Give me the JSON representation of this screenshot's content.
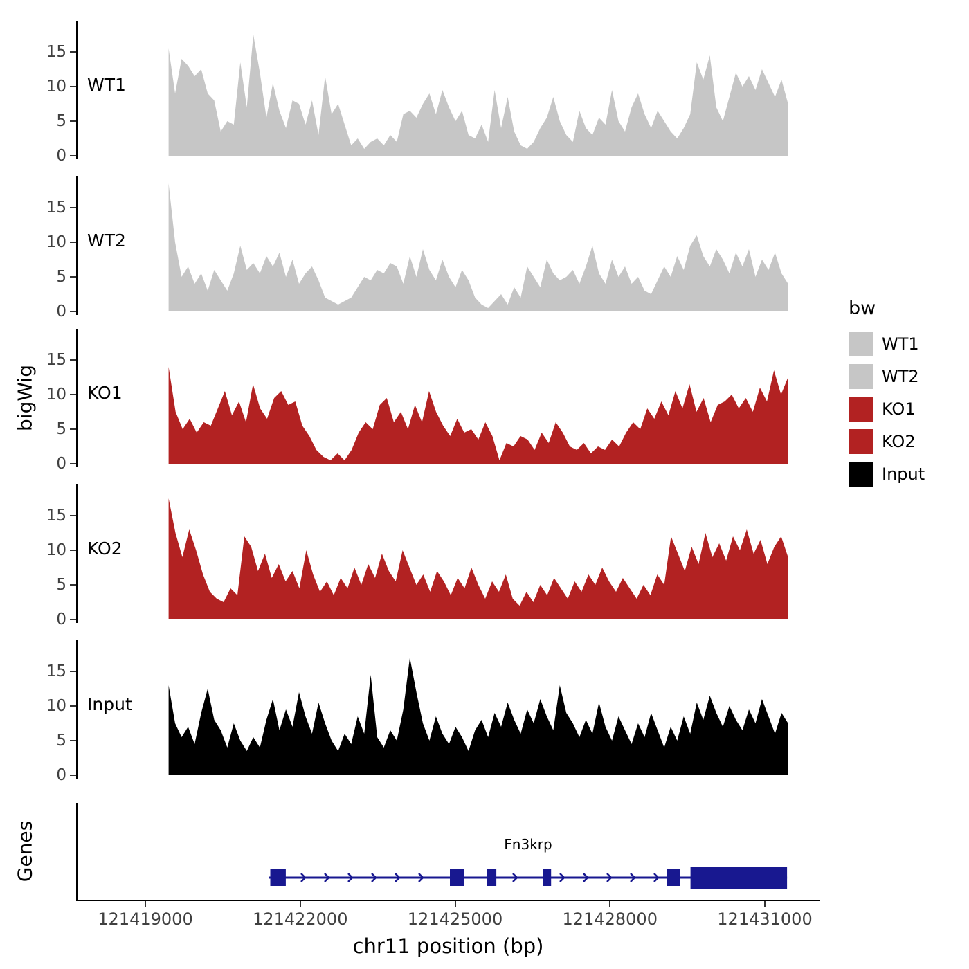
{
  "labels": {
    "y_axis": "bigWig",
    "genes_axis": "Genes",
    "x_axis": "chr11 position (bp)"
  },
  "axis": {
    "x_min": 121419000,
    "x_max": 121431000,
    "x_ticks": [
      121419000,
      121422000,
      121425000,
      121428000,
      121431000
    ],
    "x_tick_labels": [
      "121419000",
      "121422000",
      "121425000",
      "121428000",
      "121431000"
    ],
    "y_ticks": [
      0,
      5,
      10,
      15
    ]
  },
  "legend": {
    "title": "bw",
    "items": [
      {
        "label": "WT1",
        "color": "#c6c6c6"
      },
      {
        "label": "WT2",
        "color": "#c6c6c6"
      },
      {
        "label": "KO1",
        "color": "#b22222"
      },
      {
        "label": "KO2",
        "color": "#b22222"
      },
      {
        "label": "Input",
        "color": "#000000"
      }
    ]
  },
  "chart_data": {
    "type": "area",
    "title": "",
    "xlabel": "chr11 position (bp)",
    "ylabel": "bigWig",
    "x_start": 121419450,
    "x_end": 121431450,
    "ylim": [
      0,
      19
    ],
    "tracks": [
      {
        "name": "WT1",
        "color": "#c6c6c6",
        "values": [
          15.5,
          9,
          14,
          13,
          11.5,
          12.5,
          9,
          8,
          3.5,
          5,
          4.5,
          13.5,
          7,
          17.5,
          12,
          5.5,
          10.5,
          6.5,
          4,
          8,
          7.5,
          4.5,
          8,
          3,
          11.5,
          6,
          7.5,
          4.5,
          1.5,
          2.5,
          1,
          2,
          2.5,
          1.5,
          3,
          2,
          6,
          6.5,
          5.5,
          7.5,
          9,
          6,
          9.5,
          7,
          5,
          6.5,
          3,
          2.5,
          4.5,
          2,
          9.5,
          4,
          8.5,
          3.5,
          1.5,
          1,
          2,
          4,
          5.5,
          8.5,
          5,
          3,
          2,
          6.5,
          4,
          3,
          5.5,
          4.5,
          9.5,
          5,
          3.5,
          7,
          9,
          6,
          4,
          6.5,
          5,
          3.5,
          2.5,
          4,
          6,
          13.5,
          11,
          14.5,
          7,
          5,
          8.5,
          12,
          10,
          11.5,
          9.5,
          12.5,
          10.5,
          8.5,
          11,
          7.5
        ]
      },
      {
        "name": "WT2",
        "color": "#c6c6c6",
        "values": [
          18.5,
          10,
          5,
          6.5,
          4,
          5.5,
          3,
          6,
          4.5,
          3,
          5.5,
          9.5,
          6,
          7,
          5.5,
          8,
          6.5,
          8.5,
          5,
          7.5,
          4,
          5.5,
          6.5,
          4.5,
          2,
          1.5,
          1,
          1.5,
          2,
          3.5,
          5,
          4.5,
          6,
          5.5,
          7,
          6.5,
          4,
          8,
          5,
          9,
          6,
          4.5,
          7.5,
          5,
          3.5,
          6,
          4.5,
          2,
          1,
          0.5,
          1.5,
          2.5,
          1,
          3.5,
          2,
          6.5,
          5,
          3.5,
          7.5,
          5.5,
          4.5,
          5,
          6,
          4,
          6.5,
          9.5,
          5.5,
          4,
          7.5,
          5,
          6.5,
          4,
          5,
          3,
          2.5,
          4.5,
          6.5,
          5,
          8,
          6,
          9.5,
          11,
          8,
          6.5,
          9,
          7.5,
          5.5,
          8.5,
          6.5,
          9,
          5,
          7.5,
          6,
          8.5,
          5.5,
          4
        ]
      },
      {
        "name": "KO1",
        "color": "#b22222",
        "values": [
          14,
          7.5,
          5,
          6.5,
          4.5,
          6,
          5.5,
          8,
          10.5,
          7,
          9,
          6,
          11.5,
          8,
          6.5,
          9.5,
          10.5,
          8.5,
          9,
          5.5,
          4,
          2,
          1,
          0.5,
          1.5,
          0.5,
          2,
          4.5,
          6,
          5,
          8.5,
          9.5,
          6,
          7.5,
          5,
          8.5,
          6,
          10.5,
          7.5,
          5.5,
          4,
          6.5,
          4.5,
          5,
          3.5,
          6,
          4,
          0.5,
          3,
          2.5,
          4,
          3.5,
          2,
          4.5,
          3,
          6,
          4.5,
          2.5,
          2,
          3,
          1.5,
          2.5,
          2,
          3.5,
          2.5,
          4.5,
          6,
          5,
          8,
          6.5,
          9,
          7,
          10.5,
          8,
          11.5,
          7.5,
          9.5,
          6,
          8.5,
          9,
          10,
          8,
          9.5,
          7.5,
          11,
          9,
          13.5,
          10,
          12.5
        ]
      },
      {
        "name": "KO2",
        "color": "#b22222",
        "values": [
          17.5,
          12.5,
          9,
          13,
          10,
          6.5,
          4,
          3,
          2.5,
          4.5,
          3.5,
          12,
          10.5,
          7,
          9.5,
          6,
          8,
          5.5,
          7,
          4.5,
          10,
          6.5,
          4,
          5.5,
          3.5,
          6,
          4.5,
          7.5,
          5,
          8,
          6,
          9.5,
          7,
          5.5,
          10,
          7.5,
          5,
          6.5,
          4,
          7,
          5.5,
          3.5,
          6,
          4.5,
          7.5,
          5,
          3,
          5.5,
          4,
          6.5,
          3,
          2,
          4,
          2.5,
          5,
          3.5,
          6,
          4.5,
          3,
          5.5,
          4,
          6.5,
          5,
          7.5,
          5.5,
          4,
          6,
          4.5,
          3,
          5,
          3.5,
          6.5,
          5,
          12,
          9.5,
          7,
          10.5,
          8,
          12.5,
          9,
          11,
          8.5,
          12,
          10,
          13,
          9.5,
          11.5,
          8,
          10.5,
          12,
          9
        ]
      },
      {
        "name": "Input",
        "color": "#000000",
        "values": [
          13,
          7.5,
          5.5,
          7,
          4.5,
          9,
          12.5,
          8,
          6.5,
          4,
          7.5,
          5,
          3.5,
          5.5,
          4,
          8,
          11,
          6.5,
          9.5,
          7,
          12,
          8.5,
          6,
          10.5,
          7.5,
          5,
          3.5,
          6,
          4.5,
          8.5,
          6,
          14.5,
          5.5,
          4,
          6.5,
          5,
          9.5,
          17,
          12,
          7.5,
          5,
          8.5,
          6,
          4.5,
          7,
          5.5,
          3.5,
          6.5,
          8,
          5.5,
          9,
          7,
          10.5,
          8,
          6,
          9.5,
          7.5,
          11,
          8.5,
          6.5,
          13,
          9,
          7.5,
          5.5,
          8,
          6,
          10.5,
          7,
          5,
          8.5,
          6.5,
          4.5,
          7.5,
          5.5,
          9,
          6.5,
          4,
          7,
          5,
          8.5,
          6,
          10.5,
          8,
          11.5,
          9,
          7,
          10,
          8,
          6.5,
          9.5,
          7.5,
          11,
          8.5,
          6,
          9,
          7.5
        ]
      }
    ],
    "gene": {
      "label": "Fn3krp",
      "chrom": "chr11",
      "start": 121421400,
      "end": 121431430,
      "strand": "+",
      "color": "#181890",
      "exons": [
        {
          "start": 121421420,
          "end": 121421720,
          "thick": false
        },
        {
          "start": 121424900,
          "end": 121425180,
          "thick": false
        },
        {
          "start": 121425620,
          "end": 121425800,
          "thick": false
        },
        {
          "start": 121426700,
          "end": 121426860,
          "thick": false
        },
        {
          "start": 121429100,
          "end": 121429360,
          "thick": false
        },
        {
          "start": 121429560,
          "end": 121431430,
          "thick": true
        }
      ]
    }
  }
}
